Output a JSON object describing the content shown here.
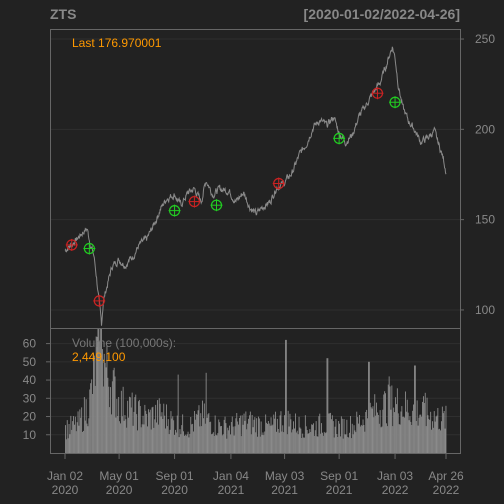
{
  "chart_data": {
    "type": "line",
    "title": "ZTS",
    "date_range": "[2020-01-02/2022-04-26]",
    "last_label": "Last 176.970001",
    "volume_label": "Volume (100,000s):",
    "volume_value": "2,449,100",
    "x_ticks": [
      {
        "date": "2020-01-02",
        "line1": "Jan 02",
        "line2": "2020"
      },
      {
        "date": "2020-05-01",
        "line1": "May 01",
        "line2": "2020"
      },
      {
        "date": "2020-09-01",
        "line1": "Sep 01",
        "line2": "2020"
      },
      {
        "date": "2021-01-04",
        "line1": "Jan 04",
        "line2": "2021"
      },
      {
        "date": "2021-05-03",
        "line1": "May 03",
        "line2": "2021"
      },
      {
        "date": "2021-09-01",
        "line1": "Sep 01",
        "line2": "2021"
      },
      {
        "date": "2022-01-03",
        "line1": "Jan 03",
        "line2": "2022"
      },
      {
        "date": "2022-04-26",
        "line1": "Apr 26",
        "line2": "2022"
      }
    ],
    "price_axis": {
      "ticks": [
        100,
        150,
        200,
        250
      ],
      "range": [
        90,
        255
      ]
    },
    "volume_axis": {
      "ticks": [
        10,
        20,
        30,
        40,
        50,
        60
      ],
      "range": [
        0,
        68
      ]
    },
    "price_series": {
      "name": "Close",
      "points": [
        [
          "2020-01-02",
          133
        ],
        [
          "2020-01-15",
          136
        ],
        [
          "2020-01-28",
          139
        ],
        [
          "2020-02-10",
          143
        ],
        [
          "2020-02-20",
          145
        ],
        [
          "2020-02-28",
          136
        ],
        [
          "2020-03-06",
          130
        ],
        [
          "2020-03-12",
          118
        ],
        [
          "2020-03-18",
          103
        ],
        [
          "2020-03-23",
          92
        ],
        [
          "2020-03-27",
          105
        ],
        [
          "2020-04-03",
          112
        ],
        [
          "2020-04-15",
          124
        ],
        [
          "2020-04-30",
          128
        ],
        [
          "2020-05-15",
          125
        ],
        [
          "2020-06-01",
          130
        ],
        [
          "2020-06-15",
          136
        ],
        [
          "2020-07-01",
          139
        ],
        [
          "2020-07-15",
          146
        ],
        [
          "2020-08-01",
          156
        ],
        [
          "2020-08-15",
          162
        ],
        [
          "2020-09-01",
          164
        ],
        [
          "2020-09-15",
          158
        ],
        [
          "2020-10-01",
          165
        ],
        [
          "2020-10-15",
          167
        ],
        [
          "2020-10-30",
          160
        ],
        [
          "2020-11-10",
          172
        ],
        [
          "2020-11-25",
          164
        ],
        [
          "2020-12-10",
          167
        ],
        [
          "2020-12-31",
          166
        ],
        [
          "2021-01-15",
          160
        ],
        [
          "2021-02-01",
          165
        ],
        [
          "2021-02-15",
          157
        ],
        [
          "2021-03-01",
          153
        ],
        [
          "2021-03-15",
          157
        ],
        [
          "2021-04-01",
          160
        ],
        [
          "2021-04-15",
          168
        ],
        [
          "2021-05-01",
          170
        ],
        [
          "2021-05-20",
          176
        ],
        [
          "2021-06-05",
          186
        ],
        [
          "2021-06-20",
          192
        ],
        [
          "2021-07-05",
          201
        ],
        [
          "2021-07-20",
          205
        ],
        [
          "2021-08-05",
          202
        ],
        [
          "2021-08-20",
          207
        ],
        [
          "2021-09-01",
          198
        ],
        [
          "2021-09-15",
          193
        ],
        [
          "2021-09-30",
          197
        ],
        [
          "2021-10-15",
          207
        ],
        [
          "2021-11-01",
          214
        ],
        [
          "2021-11-15",
          220
        ],
        [
          "2021-12-01",
          226
        ],
        [
          "2021-12-15",
          236
        ],
        [
          "2021-12-28",
          246
        ],
        [
          "2022-01-03",
          240
        ],
        [
          "2022-01-10",
          225
        ],
        [
          "2022-01-20",
          212
        ],
        [
          "2022-02-01",
          205
        ],
        [
          "2022-02-15",
          200
        ],
        [
          "2022-03-01",
          193
        ],
        [
          "2022-03-15",
          195
        ],
        [
          "2022-03-31",
          199
        ],
        [
          "2022-04-12",
          190
        ],
        [
          "2022-04-20",
          184
        ],
        [
          "2022-04-26",
          177
        ]
      ]
    },
    "markers": [
      {
        "date": "2020-01-17",
        "value": 136,
        "kind": "sell",
        "color": "#cc2222"
      },
      {
        "date": "2020-02-25",
        "value": 134,
        "kind": "buy",
        "color": "#22cc22"
      },
      {
        "date": "2020-03-18",
        "value": 105,
        "kind": "sell",
        "color": "#cc2222"
      },
      {
        "date": "2020-09-01",
        "value": 155,
        "kind": "buy",
        "color": "#22cc22"
      },
      {
        "date": "2020-10-15",
        "value": 160,
        "kind": "sell",
        "color": "#cc2222"
      },
      {
        "date": "2020-12-03",
        "value": 158,
        "kind": "buy",
        "color": "#22cc22"
      },
      {
        "date": "2021-04-20",
        "value": 170,
        "kind": "sell",
        "color": "#cc2222"
      },
      {
        "date": "2021-09-01",
        "value": 195,
        "kind": "buy",
        "color": "#22cc22"
      },
      {
        "date": "2021-11-25",
        "value": 220,
        "kind": "sell",
        "color": "#cc2222"
      },
      {
        "date": "2022-01-03",
        "value": 215,
        "kind": "buy",
        "color": "#22cc22"
      }
    ],
    "volume_profile": [
      [
        "2020-01-02",
        13
      ],
      [
        "2020-02-01",
        16
      ],
      [
        "2020-02-25",
        28
      ],
      [
        "2020-03-10",
        50
      ],
      [
        "2020-03-20",
        62
      ],
      [
        "2020-04-01",
        45
      ],
      [
        "2020-05-01",
        27
      ],
      [
        "2020-06-01",
        23
      ],
      [
        "2020-07-01",
        19
      ],
      [
        "2020-08-01",
        22
      ],
      [
        "2020-09-01",
        16
      ],
      [
        "2020-10-01",
        14
      ],
      [
        "2020-11-01",
        20
      ],
      [
        "2020-12-01",
        15
      ],
      [
        "2021-01-01",
        14
      ],
      [
        "2021-02-01",
        17
      ],
      [
        "2021-03-01",
        16
      ],
      [
        "2021-04-01",
        14
      ],
      [
        "2021-05-01",
        19
      ],
      [
        "2021-06-01",
        15
      ],
      [
        "2021-07-01",
        14
      ],
      [
        "2021-08-01",
        16
      ],
      [
        "2021-09-01",
        14
      ],
      [
        "2021-10-01",
        15
      ],
      [
        "2021-11-01",
        20
      ],
      [
        "2021-12-01",
        25
      ],
      [
        "2022-01-01",
        27
      ],
      [
        "2022-02-01",
        24
      ],
      [
        "2022-03-01",
        22
      ],
      [
        "2022-04-26",
        18
      ]
    ],
    "volume_spikes": [
      [
        "2020-03-16",
        68
      ],
      [
        "2020-03-19",
        61
      ],
      [
        "2020-03-24",
        57
      ],
      [
        "2020-09-08",
        43
      ],
      [
        "2020-11-09",
        44
      ],
      [
        "2021-05-05",
        62
      ],
      [
        "2021-08-05",
        52
      ],
      [
        "2021-11-05",
        50
      ],
      [
        "2021-12-20",
        42
      ],
      [
        "2022-02-15",
        48
      ],
      [
        "2022-03-10",
        33
      ]
    ],
    "colors": {
      "background": "#222222",
      "grid": "#2f2f2f",
      "frame": "#666666",
      "axis_text": "#888888",
      "price_line": "#8a8a8a",
      "volume_bar": "#8a8a8a",
      "accent": "#ff9900"
    },
    "grid": true
  }
}
